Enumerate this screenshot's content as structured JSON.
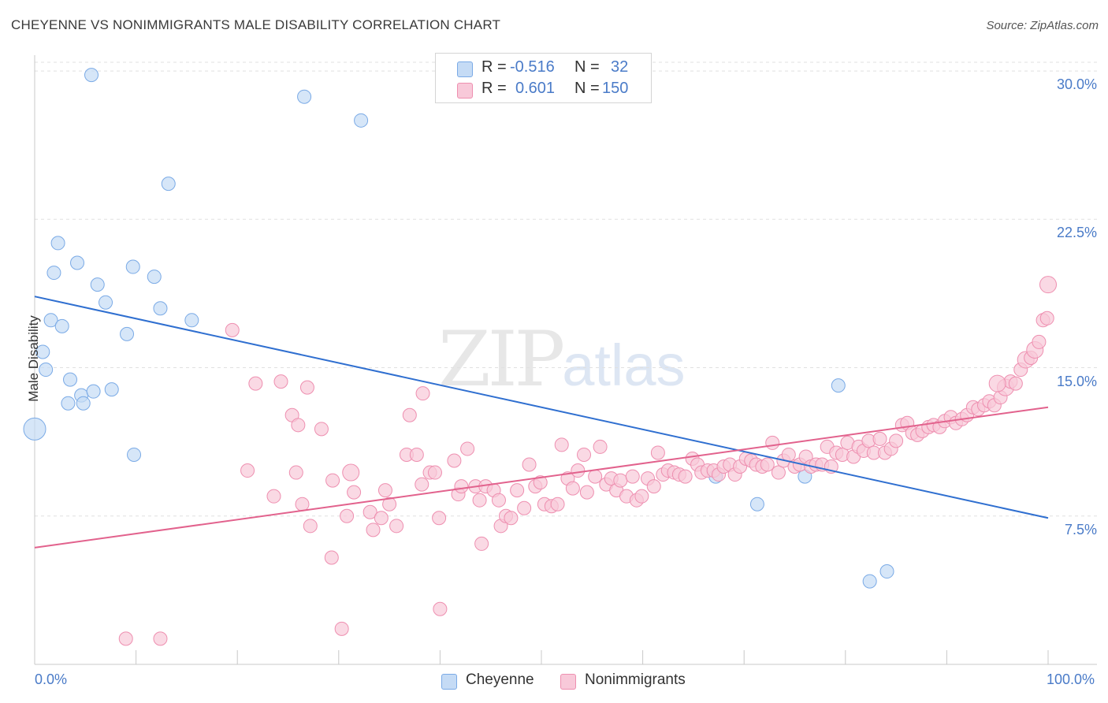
{
  "title": "CHEYENNE VS NONIMMIGRANTS MALE DISABILITY CORRELATION CHART",
  "source": "Source: ZipAtlas.com",
  "watermark": {
    "zip": "ZIP",
    "atlas": "atlas"
  },
  "stats": [
    {
      "r_label": "R =",
      "r_value": "-0.516",
      "n_label": "N =",
      "n_value": "32",
      "color": "#7aaae6",
      "fill": "#c5dbf5"
    },
    {
      "r_label": "R =",
      "r_value": "0.601",
      "n_label": "N =",
      "n_value": "150",
      "color": "#ee8fb0",
      "fill": "#f8c9d9"
    }
  ],
  "legend": [
    {
      "name": "Cheyenne",
      "color": "#7aaae6",
      "fill": "#c5dbf5"
    },
    {
      "name": "Nonimmigrants",
      "color": "#ee8fb0",
      "fill": "#f8c9d9"
    }
  ],
  "chart_data": {
    "type": "scatter",
    "title": "CHEYENNE VS NONIMMIGRANTS MALE DISABILITY CORRELATION CHART",
    "xlabel": "",
    "ylabel": "Male Disability",
    "xlim": [
      0,
      100
    ],
    "ylim": [
      0,
      30.8
    ],
    "x_ticks": [
      "0.0%",
      "100.0%"
    ],
    "y_ticks": [
      {
        "value": 7.5,
        "label": "7.5%"
      },
      {
        "value": 15.0,
        "label": "15.0%"
      },
      {
        "value": 22.5,
        "label": "22.5%"
      },
      {
        "value": 30.0,
        "label": "30.0%"
      }
    ],
    "grid": true,
    "legend_position": "bottom",
    "series": [
      {
        "name": "Cheyenne",
        "color": "#7aaae6",
        "fill": "#c5dbf5",
        "line_color": "#2f6fd0",
        "trend": [
          [
            0,
            18.6
          ],
          [
            100,
            7.4
          ]
        ],
        "points": [
          [
            5.6,
            29.8
          ],
          [
            26.6,
            28.7
          ],
          [
            32.2,
            27.5
          ],
          [
            13.2,
            24.3
          ],
          [
            2.3,
            21.3
          ],
          [
            4.2,
            20.3
          ],
          [
            1.9,
            19.8
          ],
          [
            9.7,
            20.1
          ],
          [
            11.8,
            19.6
          ],
          [
            6.2,
            19.2
          ],
          [
            7.0,
            18.3
          ],
          [
            12.4,
            18.0
          ],
          [
            1.6,
            17.4
          ],
          [
            15.5,
            17.4
          ],
          [
            2.7,
            17.1
          ],
          [
            9.1,
            16.7
          ],
          [
            0.8,
            15.8
          ],
          [
            1.1,
            14.9
          ],
          [
            3.5,
            14.4
          ],
          [
            7.6,
            13.9
          ],
          [
            4.6,
            13.6
          ],
          [
            5.8,
            13.8
          ],
          [
            3.3,
            13.2
          ],
          [
            4.8,
            13.2
          ],
          [
            0.0,
            11.9
          ],
          [
            9.8,
            10.6
          ],
          [
            67.2,
            9.5
          ],
          [
            71.3,
            8.1
          ],
          [
            76.0,
            9.5
          ],
          [
            79.3,
            14.1
          ],
          [
            82.4,
            4.2
          ],
          [
            84.1,
            4.7
          ]
        ],
        "big_point_index": 24
      },
      {
        "name": "Nonimmigrants",
        "color": "#ee8fb0",
        "fill": "#f8c9d9",
        "line_color": "#e2628d",
        "trend": [
          [
            0,
            5.9
          ],
          [
            100,
            13.0
          ]
        ],
        "points": [
          [
            9.0,
            1.3
          ],
          [
            12.4,
            1.3
          ],
          [
            30.3,
            1.8
          ],
          [
            29.3,
            5.4
          ],
          [
            40.0,
            2.8
          ],
          [
            19.5,
            16.9
          ],
          [
            21.8,
            14.2
          ],
          [
            24.3,
            14.3
          ],
          [
            26.9,
            14.0
          ],
          [
            25.4,
            12.6
          ],
          [
            26.0,
            12.1
          ],
          [
            28.3,
            11.9
          ],
          [
            37.0,
            12.6
          ],
          [
            38.3,
            13.7
          ],
          [
            25.8,
            9.7
          ],
          [
            29.4,
            9.3
          ],
          [
            31.5,
            8.7
          ],
          [
            26.4,
            8.1
          ],
          [
            27.2,
            7.0
          ],
          [
            30.8,
            7.5
          ],
          [
            33.1,
            7.7
          ],
          [
            34.2,
            7.4
          ],
          [
            35.0,
            8.1
          ],
          [
            35.7,
            7.0
          ],
          [
            36.7,
            10.6
          ],
          [
            37.7,
            10.6
          ],
          [
            38.2,
            9.1
          ],
          [
            39.0,
            9.7
          ],
          [
            39.5,
            9.7
          ],
          [
            39.9,
            7.4
          ],
          [
            41.4,
            10.3
          ],
          [
            41.8,
            8.6
          ],
          [
            42.1,
            9.0
          ],
          [
            42.7,
            10.9
          ],
          [
            43.5,
            9.0
          ],
          [
            43.9,
            8.3
          ],
          [
            44.1,
            6.1
          ],
          [
            44.5,
            9.0
          ],
          [
            45.3,
            8.8
          ],
          [
            45.8,
            8.3
          ],
          [
            46.0,
            7.0
          ],
          [
            46.5,
            7.5
          ],
          [
            47.0,
            7.4
          ],
          [
            47.6,
            8.8
          ],
          [
            48.3,
            7.9
          ],
          [
            48.8,
            10.1
          ],
          [
            49.4,
            9.0
          ],
          [
            49.9,
            9.2
          ],
          [
            50.3,
            8.1
          ],
          [
            51.0,
            8.0
          ],
          [
            51.6,
            8.1
          ],
          [
            52.0,
            11.1
          ],
          [
            52.6,
            9.4
          ],
          [
            53.1,
            8.9
          ],
          [
            53.6,
            9.8
          ],
          [
            54.2,
            10.6
          ],
          [
            54.5,
            8.7
          ],
          [
            55.3,
            9.5
          ],
          [
            55.8,
            11.0
          ],
          [
            56.4,
            9.1
          ],
          [
            56.9,
            9.4
          ],
          [
            57.4,
            8.8
          ],
          [
            57.8,
            9.3
          ],
          [
            58.4,
            8.5
          ],
          [
            59.0,
            9.5
          ],
          [
            59.4,
            8.3
          ],
          [
            59.9,
            8.5
          ],
          [
            60.5,
            9.4
          ],
          [
            61.1,
            9.0
          ],
          [
            61.5,
            10.7
          ],
          [
            62.0,
            9.6
          ],
          [
            62.5,
            9.8
          ],
          [
            63.1,
            9.7
          ],
          [
            63.6,
            9.6
          ],
          [
            64.2,
            9.5
          ],
          [
            64.9,
            10.4
          ],
          [
            65.4,
            10.1
          ],
          [
            65.8,
            9.7
          ],
          [
            66.4,
            9.8
          ],
          [
            67.0,
            9.8
          ],
          [
            67.5,
            9.6
          ],
          [
            68.0,
            10.0
          ],
          [
            68.6,
            10.1
          ],
          [
            69.1,
            9.6
          ],
          [
            69.6,
            10.0
          ],
          [
            70.2,
            10.4
          ],
          [
            70.7,
            10.3
          ],
          [
            71.2,
            10.1
          ],
          [
            71.8,
            10.0
          ],
          [
            72.3,
            10.1
          ],
          [
            72.8,
            11.2
          ],
          [
            73.4,
            9.7
          ],
          [
            73.9,
            10.3
          ],
          [
            74.4,
            10.6
          ],
          [
            75.0,
            10.0
          ],
          [
            75.5,
            10.1
          ],
          [
            76.1,
            10.5
          ],
          [
            76.6,
            10.0
          ],
          [
            77.1,
            10.1
          ],
          [
            77.7,
            10.1
          ],
          [
            78.2,
            11.0
          ],
          [
            78.6,
            10.0
          ],
          [
            79.1,
            10.7
          ],
          [
            79.7,
            10.6
          ],
          [
            80.2,
            11.2
          ],
          [
            80.8,
            10.5
          ],
          [
            81.3,
            11.0
          ],
          [
            81.8,
            10.8
          ],
          [
            82.3,
            11.3
          ],
          [
            82.8,
            10.7
          ],
          [
            83.4,
            11.4
          ],
          [
            83.9,
            10.7
          ],
          [
            84.5,
            10.9
          ],
          [
            85.0,
            11.3
          ],
          [
            85.6,
            12.1
          ],
          [
            86.1,
            12.2
          ],
          [
            86.6,
            11.7
          ],
          [
            87.1,
            11.6
          ],
          [
            87.6,
            11.8
          ],
          [
            88.2,
            12.0
          ],
          [
            88.7,
            12.1
          ],
          [
            89.3,
            12.0
          ],
          [
            89.8,
            12.3
          ],
          [
            90.4,
            12.5
          ],
          [
            90.9,
            12.2
          ],
          [
            91.5,
            12.4
          ],
          [
            92.0,
            12.6
          ],
          [
            92.6,
            13.0
          ],
          [
            93.1,
            12.9
          ],
          [
            93.7,
            13.1
          ],
          [
            94.2,
            13.3
          ],
          [
            94.7,
            13.1
          ],
          [
            95.3,
            13.5
          ],
          [
            95.8,
            14.0
          ],
          [
            96.3,
            14.3
          ],
          [
            96.8,
            14.2
          ],
          [
            97.3,
            14.9
          ],
          [
            97.8,
            15.4
          ],
          [
            98.3,
            15.5
          ],
          [
            98.7,
            15.9
          ],
          [
            99.1,
            16.3
          ],
          [
            99.5,
            17.4
          ],
          [
            99.9,
            17.5
          ],
          [
            100.0,
            19.2
          ],
          [
            95.0,
            14.2
          ],
          [
            31.2,
            9.7
          ],
          [
            33.4,
            6.8
          ],
          [
            34.6,
            8.8
          ],
          [
            21.0,
            9.8
          ],
          [
            23.6,
            8.5
          ]
        ],
        "big_point_indices": [
          133,
          137,
          139,
          143,
          144,
          145
        ]
      }
    ]
  }
}
